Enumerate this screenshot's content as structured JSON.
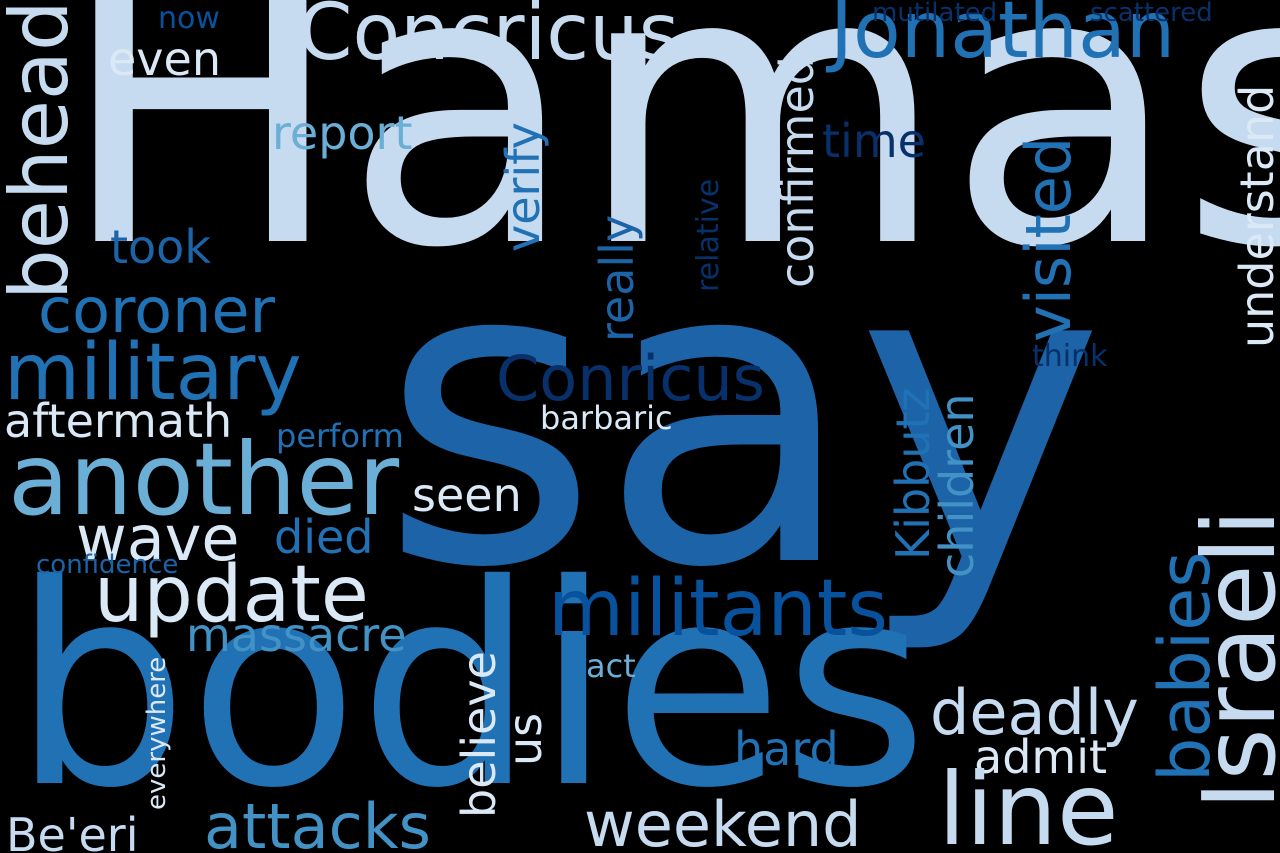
{
  "words": {
    "hamas": "Hamas",
    "say": "say",
    "bodies": "bodies",
    "concricus": "Concricus",
    "jonathan": "Jonathan",
    "now": "now",
    "mutilated": "mutilated",
    "scattered": "scattered",
    "even": "even",
    "behead": "behead",
    "report": "report",
    "verify": "verify",
    "confirmed": "confirmed",
    "time": "time",
    "visited": "visited",
    "understand": "understand",
    "took": "took",
    "relative": "relative",
    "really": "really",
    "coroner": "coroner",
    "military": "military",
    "conricus": "Conricus",
    "think": "think",
    "aftermath": "aftermath",
    "barbaric": "barbaric",
    "perform": "perform",
    "another": "another",
    "seen": "seen",
    "kibbutz": "Kibbutz",
    "children": "children",
    "israeli": "Israeli",
    "wave": "wave",
    "died": "died",
    "babies": "babies",
    "confidence": "confidence",
    "update": "update",
    "militants": "militants",
    "massacre": "massacre",
    "believe": "believe",
    "act": "act",
    "everywhere": "everywhere",
    "deadly": "deadly",
    "us": "us",
    "hard": "hard",
    "admit": "admit",
    "line": "line",
    "weekend": "weekend",
    "beeri": "Be'eri",
    "attacks": "attacks"
  },
  "colors": {
    "background": "#000000",
    "palest": "#c6dbef",
    "pale": "#dbe9f6",
    "light": "#9ecae1",
    "mid_light": "#6baed6",
    "mid": "#4292c6",
    "strong": "#2171b5",
    "deep": "#1c63a8",
    "dark": "#08519c",
    "darkest": "#08306b"
  }
}
